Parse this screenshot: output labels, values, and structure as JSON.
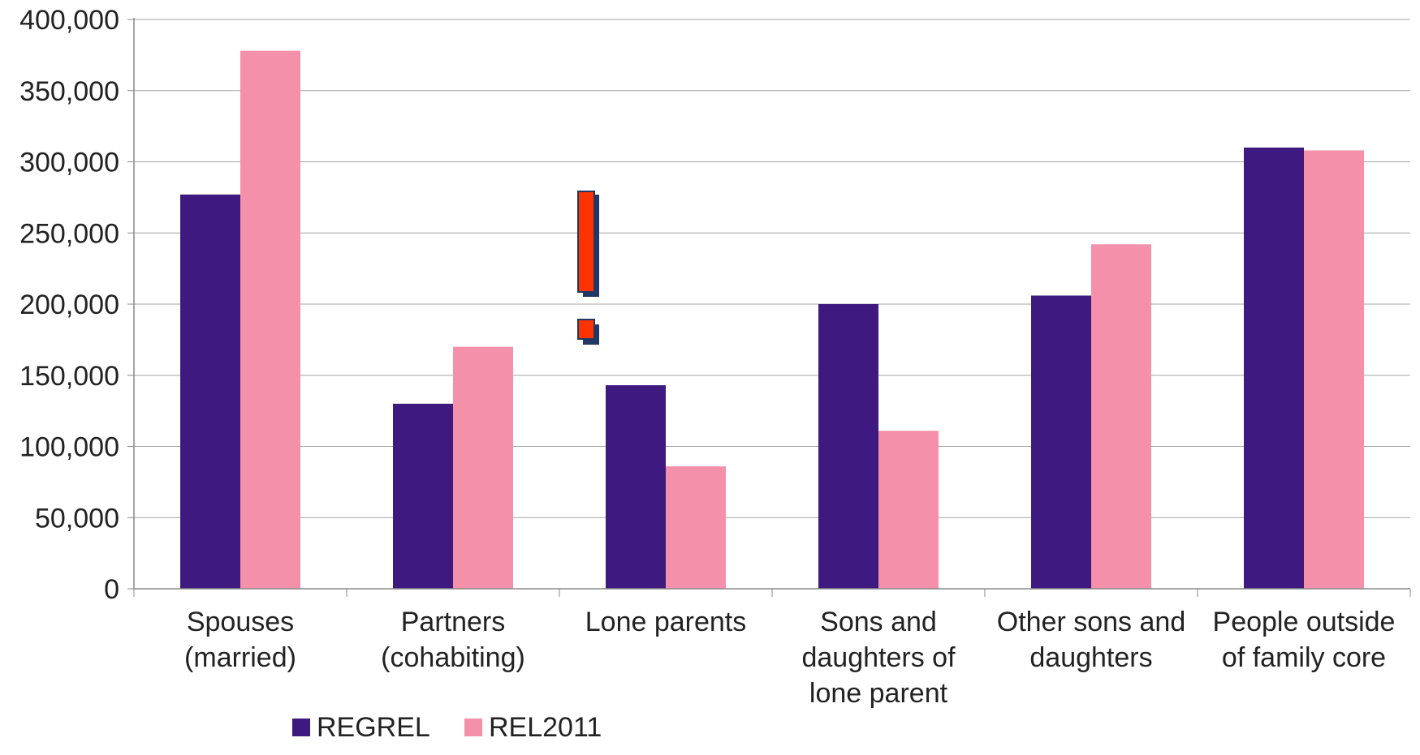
{
  "chart_data": {
    "type": "bar",
    "title": "",
    "xlabel": "",
    "ylabel": "",
    "ylim": [
      0,
      400000
    ],
    "yticks": [
      "0",
      "50,000",
      "100,000",
      "150,000",
      "200,000",
      "250,000",
      "300,000",
      "350,000",
      "400,000"
    ],
    "ytick_values": [
      0,
      50000,
      100000,
      150000,
      200000,
      250000,
      300000,
      350000,
      400000
    ],
    "grid": true,
    "legend_position": "bottom-left",
    "categories": [
      [
        "Spouses",
        "(married)"
      ],
      [
        "Partners",
        "(cohabiting)"
      ],
      [
        "Lone parents"
      ],
      [
        "Sons and",
        "daughters of",
        "lone parent"
      ],
      [
        "Other sons and",
        "daughters"
      ],
      [
        "People outside",
        "of family core"
      ]
    ],
    "series": [
      {
        "name": "REGREL",
        "color": "#3e1a80",
        "values": [
          277000,
          130000,
          143000,
          200000,
          206000,
          310000
        ]
      },
      {
        "name": "REL2011",
        "color": "#f490aa",
        "values": [
          378000,
          170000,
          86000,
          111000,
          242000,
          308000
        ]
      }
    ],
    "annotation": {
      "type": "exclamation-icon",
      "color": "#ff3300",
      "shadow_color": "#1f3864"
    }
  }
}
